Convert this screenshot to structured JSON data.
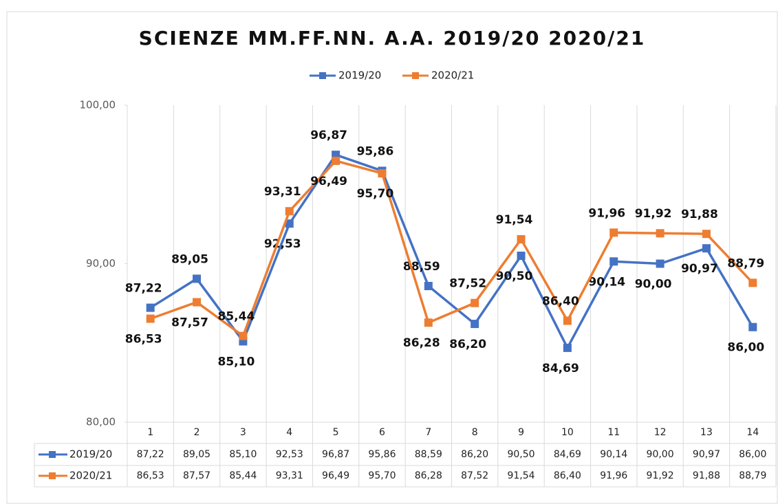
{
  "chart_data": {
    "type": "line",
    "title": "SCIENZE MM.FF.NN. A.A. 2019/20 2020/21",
    "categories": [
      "1",
      "2",
      "3",
      "4",
      "5",
      "6",
      "7",
      "8",
      "9",
      "10",
      "11",
      "12",
      "13",
      "14"
    ],
    "series": [
      {
        "name": "2019/20",
        "color": "#4472c4",
        "values": [
          87.22,
          89.05,
          85.1,
          92.53,
          96.87,
          95.86,
          88.59,
          86.2,
          90.5,
          84.69,
          90.14,
          90.0,
          90.97,
          86.0
        ],
        "value_labels": [
          "87,22",
          "89,05",
          "85,10",
          "92,53",
          "96,87",
          "95,86",
          "88,59",
          "86,20",
          "90,50",
          "84,69",
          "90,14",
          "90,00",
          "90,97",
          "86,00"
        ]
      },
      {
        "name": "2020/21",
        "color": "#ed7d31",
        "values": [
          86.53,
          87.57,
          85.44,
          93.31,
          96.49,
          95.7,
          86.28,
          87.52,
          91.54,
          86.4,
          91.96,
          91.92,
          91.88,
          88.79
        ],
        "value_labels": [
          "86,53",
          "87,57",
          "85,44",
          "93,31",
          "96,49",
          "95,70",
          "86,28",
          "87,52",
          "91,54",
          "86,40",
          "91,96",
          "91,92",
          "91,88",
          "88,79"
        ]
      }
    ],
    "ylim": [
      80,
      100
    ],
    "yticks": [
      {
        "value": 80,
        "label": "80,00"
      },
      {
        "value": 90,
        "label": "90,00"
      },
      {
        "value": 100,
        "label": "100,00"
      }
    ],
    "legend": "top",
    "data_table": true
  }
}
